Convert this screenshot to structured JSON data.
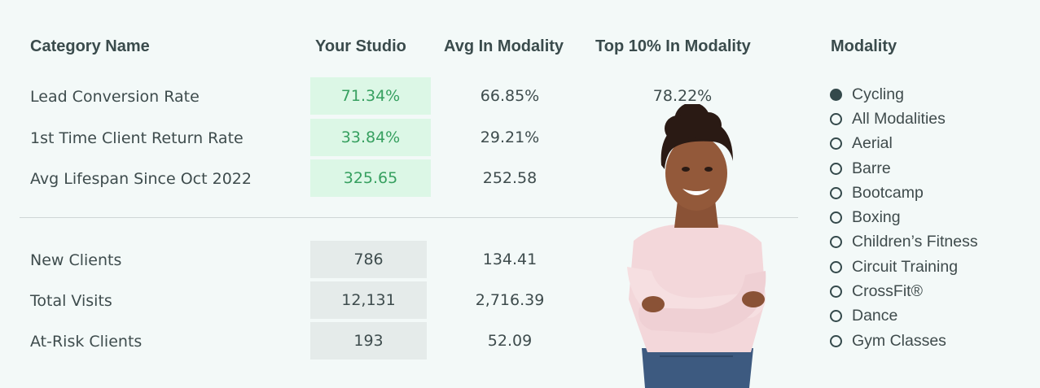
{
  "headers": {
    "category": "Category Name",
    "studio": "Your Studio",
    "avg": "Avg In Modality",
    "top": "Top 10% In Modality",
    "modality": "Modality"
  },
  "metrics_top": [
    {
      "label": "Lead Conversion Rate",
      "studio": "71.34%",
      "avg": "66.85%",
      "top": "78.22%"
    },
    {
      "label": "1st Time Client Return Rate",
      "studio": "33.84%",
      "avg": "29.21%",
      "top": ""
    },
    {
      "label": "Avg Lifespan Since Oct 2022",
      "studio": "325.65",
      "avg": "252.58",
      "top": ""
    }
  ],
  "metrics_bottom": [
    {
      "label": "New Clients",
      "studio": "786",
      "avg": "134.41"
    },
    {
      "label": "Total Visits",
      "studio": "12,131",
      "avg": "2,716.39"
    },
    {
      "label": "At-Risk Clients",
      "studio": "193",
      "avg": "52.09"
    }
  ],
  "modality_options": [
    {
      "label": "Cycling",
      "selected": true
    },
    {
      "label": "All Modalities",
      "selected": false
    },
    {
      "label": "Aerial",
      "selected": false
    },
    {
      "label": "Barre",
      "selected": false
    },
    {
      "label": "Bootcamp",
      "selected": false
    },
    {
      "label": "Boxing",
      "selected": false
    },
    {
      "label": "Children’s Fitness",
      "selected": false
    },
    {
      "label": "Circuit Training",
      "selected": false
    },
    {
      "label": "CrossFit®",
      "selected": false
    },
    {
      "label": "Dance",
      "selected": false
    },
    {
      "label": "Gym Classes",
      "selected": false
    }
  ],
  "colors": {
    "background": "#f3f9f8",
    "good_fill": "#dcf7e6",
    "good_text": "#37a060",
    "neutral_fill": "#e5ebea",
    "radio": "#34494b"
  }
}
